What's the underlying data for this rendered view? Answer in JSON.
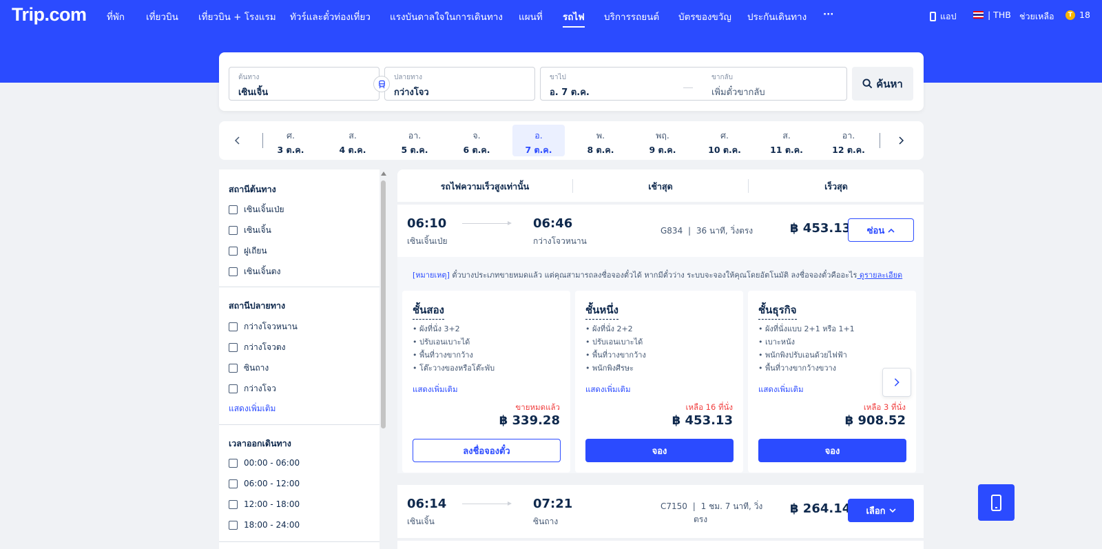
{
  "brand": "Trip.com",
  "nav": {
    "items": [
      "ที่พัก",
      "เที่ยวบิน",
      "เที่ยวบิน + โรงแรม",
      "ทัวร์และตั๋วท่องเที่ยว",
      "แรงบันดาลใจในการเดินทาง",
      "แผนที่",
      "รถไฟ",
      "บริการรถยนต์",
      "บัตรของขวัญ",
      "ประกันเดินทาง"
    ],
    "more": "···",
    "app": "แอป",
    "currency": "| THB",
    "help": "ช่วยเหลือ",
    "coins": "18"
  },
  "search": {
    "from_label": "ต้นทาง",
    "from_value": "เซินเจิ้น",
    "to_label": "ปลายทาง",
    "to_value": "กว่างโจว",
    "depart_label": "ขาไป",
    "depart_value": "อ. 7 ต.ค.",
    "return_label": "ขากลับ",
    "return_placeholder": "เพิ่มตั๋วขากลับ",
    "search_button": "ค้นหา"
  },
  "dates": [
    {
      "dow": "ศ.",
      "date": "3 ต.ค."
    },
    {
      "dow": "ส.",
      "date": "4 ต.ค."
    },
    {
      "dow": "อา.",
      "date": "5 ต.ค."
    },
    {
      "dow": "จ.",
      "date": "6 ต.ค."
    },
    {
      "dow": "อ.",
      "date": "7 ต.ค."
    },
    {
      "dow": "พ.",
      "date": "8 ต.ค."
    },
    {
      "dow": "พฤ.",
      "date": "9 ต.ค."
    },
    {
      "dow": "ศ.",
      "date": "10 ต.ค."
    },
    {
      "dow": "ส.",
      "date": "11 ต.ค."
    },
    {
      "dow": "อา.",
      "date": "12 ต.ค."
    }
  ],
  "filters": {
    "origin_title": "สถานีต้นทาง",
    "origin": [
      "เซินเจิ้นเป่ย",
      "เซินเจิ้น",
      "ฝูเถียน",
      "เซินเจิ้นตง"
    ],
    "dest_title": "สถานีปลายทาง",
    "dest": [
      "กว่างโจวหนาน",
      "กว่างโจวตง",
      "ซินถาง",
      "กว่างโจว"
    ],
    "show_more": "แสดงเพิ่มเติม",
    "time_title": "เวลาออกเดินทาง",
    "times": [
      "00:00 - 06:00",
      "06:00 - 12:00",
      "12:00 - 18:00",
      "18:00 - 24:00"
    ]
  },
  "sort": [
    "รถไฟความเร็วสูงเท่านั้น",
    "เช้าสุด",
    "เร็วสุด"
  ],
  "trains": [
    {
      "dep_time": "06:10",
      "dep_station": "เซินเจิ้นเป่ย",
      "arr_time": "06:46",
      "arr_station": "กว่างโจวหนาน",
      "number": "G834",
      "sep": "|",
      "duration": "36 นาที, วิ่งตรง",
      "price": "฿ 453.13",
      "button": "ซ่อน"
    },
    {
      "dep_time": "06:14",
      "dep_station": "เซินเจิ้น",
      "arr_time": "07:21",
      "arr_station": "ซินถาง",
      "number": "C7150",
      "sep": "|",
      "duration": "1 ชม. 7 นาที, วิ่ง",
      "duration2": "ตรง",
      "price": "฿ 264.14",
      "button": "เลือก"
    }
  ],
  "notice": {
    "tag": "[หมายเหตุ]",
    "text": " ตั๋วบางประเภทขายหมดแล้ว แต่คุณสามารถลงชื่อจองตั๋วได้ หากมีตั๋วว่าง ระบบจะจองให้คุณโดยอัตโนมัติ ลงชื่อจองตั๋วคืออะไร",
    "link": " ดูรายละเอียด"
  },
  "seats": [
    {
      "name": "ชั้นสอง",
      "features": [
        "• ผังที่นั่ง 3+2",
        "• ปรับเอนเบาะได้",
        "• พื้นที่วางขากว้าง",
        "• โต๊ะวางของหรือโต๊ะพับ"
      ],
      "more": "แสดงเพิ่มเติม",
      "status": "ขายหมดแล้ว",
      "price": "฿ 339.28",
      "button": "ลงชื่อจองตั๋ว"
    },
    {
      "name": "ชั้นหนึ่ง",
      "features": [
        "• ผังที่นั่ง 2+2",
        "• ปรับเอนเบาะได้",
        "• พื้นที่วางขากว้าง",
        "• พนักพิงศีรษะ"
      ],
      "more": "แสดงเพิ่มเติม",
      "status": "เหลือ 16 ที่นั่ง",
      "price": "฿ 453.13",
      "button": "จอง"
    },
    {
      "name": "ชั้นธุรกิจ",
      "features": [
        "• ผังที่นั่งแบบ 2+1 หรือ 1+1",
        "• เบาะหนัง",
        "• พนักพิงปรับเอนด้วยไฟฟ้า",
        "• พื้นที่วางขากว้างขวาง"
      ],
      "more": "แสดงเพิ่มเติม",
      "status": "เหลือ 3 ที่นั่ง",
      "price": "฿ 908.52",
      "button": "จอง"
    }
  ],
  "colors": {
    "brand": "#2b4bff",
    "alert": "#f03d3d",
    "text": "#0f294d"
  }
}
